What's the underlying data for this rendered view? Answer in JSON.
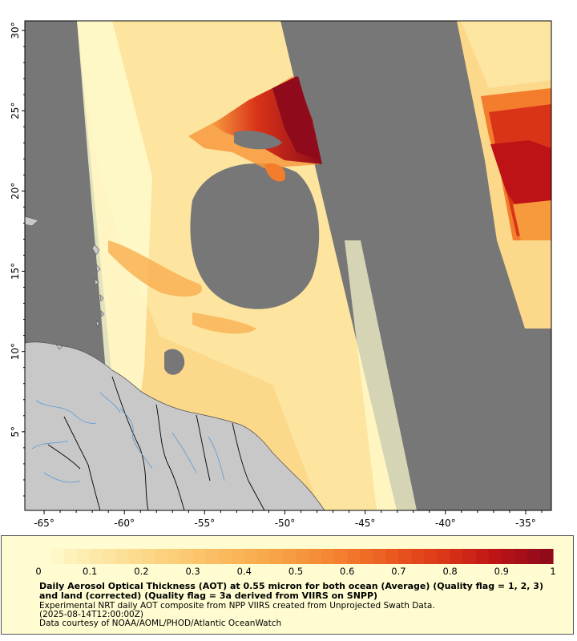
{
  "map": {
    "lat_ticks": [
      "5°",
      "10°",
      "15°",
      "20°",
      "25°",
      "30°"
    ],
    "lon_ticks": [
      "-65°",
      "-60°",
      "-55°",
      "-50°",
      "-45°",
      "-40°",
      "-35°"
    ],
    "lon_range": [
      -66.2,
      -33.4
    ],
    "lat_range": [
      0.1,
      30.6
    ],
    "colors": {
      "no_data": "#777777",
      "land": "#c8c8c8",
      "border": "#000000",
      "river": "#5b9bd5"
    }
  },
  "legend": {
    "ticks": [
      "0",
      "0.1",
      "0.2",
      "0.3",
      "0.4",
      "0.5",
      "0.6",
      "0.7",
      "0.8",
      "0.9",
      "1"
    ],
    "colors": [
      "#fefcd0",
      "#fde9a8",
      "#fcd88a",
      "#fbc66c",
      "#f9b253",
      "#f79a3e",
      "#f37c2d",
      "#e9561f",
      "#d93418",
      "#bd1316",
      "#8f0a1b"
    ],
    "title": "Daily Aerosol Optical Thickness (AOT) at 0.55 micron for both ocean (Average) (Quality flag = 1, 2, 3) and land (corrected) (Quality flag = 3a derived from VIIRS on SNPP)",
    "line2": "Experimental NRT daily AOT composite from NPP VIIRS created from Unprojected Swath Data.",
    "line3": "(2025-08-14T12:00:00Z)",
    "line4": "Data courtesy of NOAA/AOML/PHOD/Atlantic OceanWatch"
  }
}
